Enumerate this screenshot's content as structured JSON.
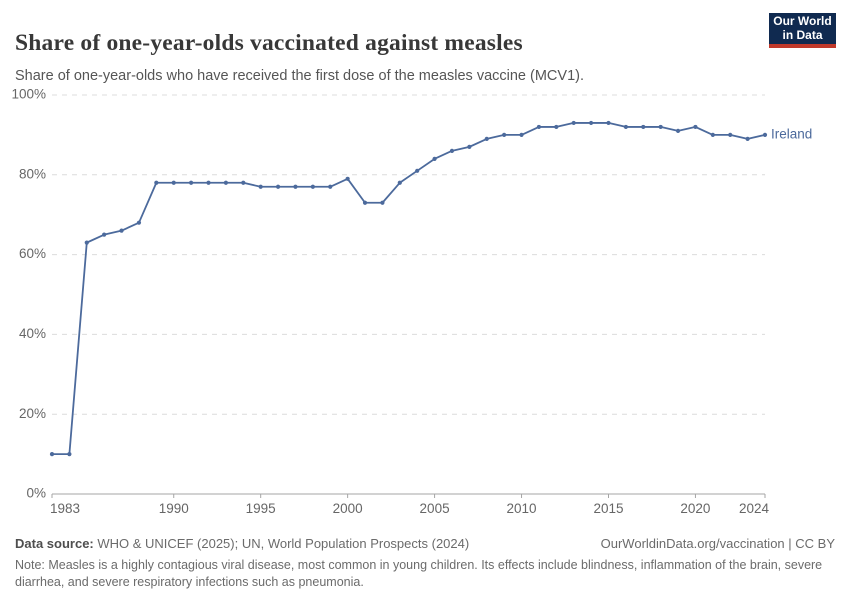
{
  "header": {
    "title": "Share of one-year-olds vaccinated against measles",
    "subtitle": "Share of one-year-olds who have received the first dose of the measles vaccine (MCV1)."
  },
  "logo": {
    "line1": "Our World",
    "line2": "in Data",
    "background_color": "#102A50",
    "bar_color": "#C0392B"
  },
  "chart_data": {
    "type": "line",
    "title": "Share of one-year-olds vaccinated against measles",
    "x": [
      1983,
      1984,
      1985,
      1986,
      1987,
      1988,
      1989,
      1990,
      1991,
      1992,
      1993,
      1994,
      1995,
      1996,
      1997,
      1998,
      1999,
      2000,
      2001,
      2002,
      2003,
      2004,
      2005,
      2006,
      2007,
      2008,
      2009,
      2010,
      2011,
      2012,
      2013,
      2014,
      2015,
      2016,
      2017,
      2018,
      2019,
      2020,
      2021,
      2022,
      2023,
      2024
    ],
    "series": [
      {
        "name": "Ireland",
        "color": "#4C6A9C",
        "values": [
          10,
          10,
          63,
          65,
          66,
          68,
          78,
          78,
          78,
          78,
          78,
          78,
          77,
          77,
          77,
          77,
          77,
          79,
          73,
          73,
          78,
          81,
          84,
          86,
          87,
          89,
          90,
          90,
          92,
          92,
          93,
          93,
          93,
          92,
          92,
          92,
          91,
          92,
          90,
          90,
          89,
          90
        ]
      }
    ],
    "ylim": [
      0,
      100
    ],
    "yticks": [
      0,
      20,
      40,
      60,
      80,
      100
    ],
    "ytick_suffix": "%",
    "xticks": [
      1983,
      1990,
      1995,
      2000,
      2005,
      2010,
      2015,
      2020,
      2024
    ],
    "grid": "horizontal-dashed",
    "legend": "end-of-line-label",
    "colors": {
      "grid": "#dcdcdc",
      "axis": "#a5a5a5",
      "tick_label": "#666666"
    }
  },
  "footer": {
    "source_label": "Data source:",
    "source_text": " WHO & UNICEF (2025); UN, World Population Prospects (2024)",
    "link": "OurWorldinData.org/vaccination",
    "separator": " | ",
    "license": "CC BY",
    "note_label": "Note:",
    "note_text": " Measles is a highly contagious viral disease, most common in young children. Its effects include blindness, inflammation of the brain, severe diarrhea, and severe respiratory infections such as pneumonia."
  }
}
